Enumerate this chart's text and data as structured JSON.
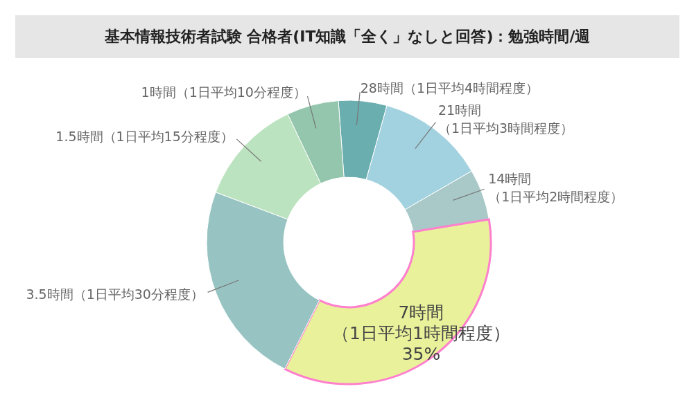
{
  "chart_data": {
    "type": "donut",
    "title": "基本情報技術者試験 合格者(IT知識「全く」なしと回答)：勉強時間/週",
    "categories": [
      "28時間（1日平均4時間程度）",
      "21時間（1日平均3時間程度）",
      "14時間（1日平均2時間程度）",
      "7時間（1日平均1時間程度）",
      "3.5時間（1日平均30分程度）",
      "1.5時間（1日平均15分程度）",
      "1時間（1日平均10分程度）"
    ],
    "values": [
      5.5,
      12.3,
      5.8,
      35,
      23.3,
      12.2,
      5.9
    ],
    "colors": [
      "#6aaeb0",
      "#a2d2e0",
      "#a9c8c8",
      "#e9f29b",
      "#97c4c2",
      "#bce3bf",
      "#93c6ad"
    ],
    "value_labels": [
      null,
      null,
      null,
      "35%",
      null,
      null,
      null
    ]
  }
}
